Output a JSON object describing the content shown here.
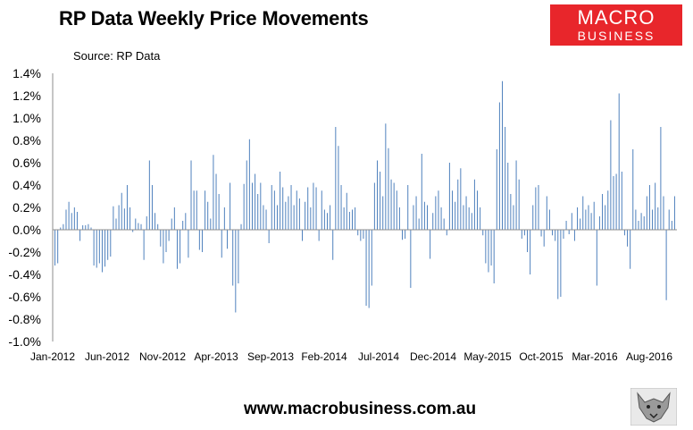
{
  "header": {
    "title": "RP Data Weekly Price Movements",
    "source": "Source: RP Data"
  },
  "logo": {
    "line1": "MACRO",
    "line2": "BUSINESS"
  },
  "footer": {
    "url": "www.macrobusiness.com.au"
  },
  "colors": {
    "bar": "#4f81bd",
    "logo_bg": "#e8262b"
  },
  "chart_data": {
    "type": "bar",
    "title": "RP Data Weekly Price Movements",
    "ylim": [
      -1.0,
      1.4
    ],
    "y_ticks": [
      "1.4%",
      "1.2%",
      "1.0%",
      "0.8%",
      "0.6%",
      "0.4%",
      "0.2%",
      "0.0%",
      "-0.2%",
      "-0.4%",
      "-0.6%",
      "-0.8%",
      "-1.0%"
    ],
    "x_ticks": [
      "Jan-2012",
      "Jun-2012",
      "Nov-2012",
      "Apr-2013",
      "Sep-2013",
      "Feb-2014",
      "Jul-2014",
      "Dec-2014",
      "May-2015",
      "Oct-2015",
      "Mar-2016",
      "Aug-2016"
    ],
    "grid": false,
    "series": [
      {
        "unit": "%",
        "values": [
          -0.32,
          -0.3,
          0.02,
          0.05,
          0.18,
          0.25,
          0.15,
          0.2,
          0.16,
          -0.1,
          0.04,
          0.04,
          0.05,
          0.02,
          -0.32,
          -0.34,
          -0.3,
          -0.38,
          -0.33,
          -0.27,
          -0.24,
          0.21,
          0.1,
          0.22,
          0.33,
          0.19,
          0.4,
          0.2,
          -0.02,
          0.1,
          0.06,
          0.05,
          -0.27,
          0.12,
          0.62,
          0.4,
          0.15,
          0.05,
          -0.15,
          -0.3,
          -0.2,
          -0.1,
          0.1,
          0.2,
          -0.35,
          -0.3,
          0.08,
          0.15,
          -0.25,
          0.62,
          0.35,
          0.35,
          -0.18,
          -0.2,
          0.35,
          0.25,
          0.1,
          0.67,
          0.5,
          0.32,
          -0.25,
          0.2,
          -0.17,
          0.42,
          -0.5,
          -0.74,
          -0.48,
          0.05,
          0.41,
          0.62,
          0.81,
          0.42,
          0.5,
          0.32,
          0.42,
          0.22,
          0.18,
          -0.12,
          0.4,
          0.35,
          0.22,
          0.52,
          0.38,
          0.25,
          0.3,
          0.4,
          0.22,
          0.35,
          0.28,
          -0.1,
          0.25,
          0.38,
          0.2,
          0.42,
          0.38,
          -0.1,
          0.35,
          0.18,
          0.15,
          0.22,
          -0.27,
          0.92,
          0.75,
          0.4,
          0.2,
          0.33,
          0.16,
          0.18,
          0.2,
          -0.05,
          -0.1,
          -0.08,
          -0.68,
          -0.7,
          -0.5,
          0.42,
          0.62,
          0.52,
          0.3,
          0.95,
          0.73,
          0.45,
          0.42,
          0.35,
          0.2,
          -0.09,
          -0.08,
          0.4,
          -0.52,
          0.22,
          0.3,
          0.1,
          0.68,
          0.25,
          0.22,
          -0.26,
          0.15,
          0.3,
          0.35,
          0.2,
          0.1,
          -0.05,
          0.6,
          0.35,
          0.25,
          0.45,
          0.55,
          0.22,
          0.3,
          0.2,
          0.15,
          0.45,
          0.35,
          0.2,
          -0.05,
          -0.3,
          -0.38,
          -0.32,
          -0.48,
          0.72,
          1.14,
          1.33,
          0.92,
          0.6,
          0.32,
          0.22,
          0.62,
          0.45,
          -0.08,
          -0.05,
          -0.2,
          -0.4,
          0.22,
          0.38,
          0.4,
          -0.06,
          -0.15,
          0.3,
          0.18,
          -0.05,
          -0.1,
          -0.62,
          -0.6,
          -0.08,
          0.08,
          -0.04,
          0.15,
          -0.1,
          0.2,
          0.1,
          0.3,
          0.18,
          0.22,
          0.15,
          0.25,
          -0.5,
          0.12,
          0.32,
          0.22,
          0.35,
          0.98,
          0.48,
          0.5,
          1.22,
          0.52,
          -0.05,
          -0.15,
          -0.35,
          0.72,
          0.18,
          0.08,
          0.15,
          0.12,
          0.3,
          0.4,
          0.18,
          0.42,
          0.2,
          0.92,
          0.3,
          -0.63,
          0.18,
          0.08,
          0.3
        ]
      }
    ]
  }
}
